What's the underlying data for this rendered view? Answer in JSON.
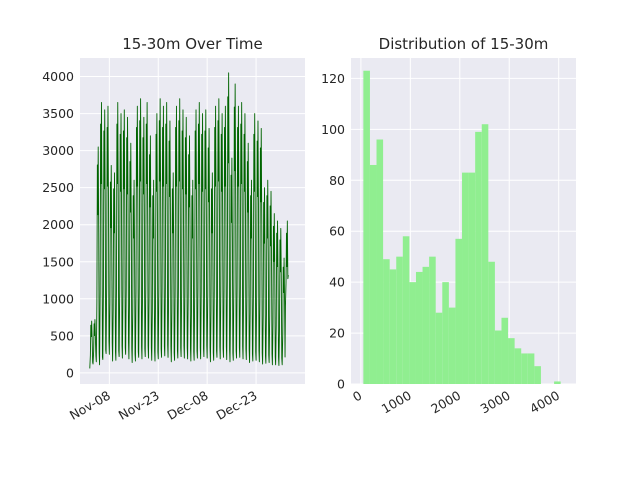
{
  "chart_data": [
    {
      "type": "line",
      "title": "15-30m Over Time",
      "xlabel": "",
      "ylabel": "",
      "x_tick_labels": [
        "Nov-08",
        "Nov-23",
        "Dec-08",
        "Dec-23"
      ],
      "x_tick_dates": [
        "2023-11-08",
        "2023-11-23",
        "2023-12-08",
        "2023-12-23"
      ],
      "xlim": [
        "2023-10-30",
        "2024-01-07"
      ],
      "y_ticks": [
        0,
        500,
        1000,
        1500,
        2000,
        2500,
        3000,
        3500,
        4000
      ],
      "ylim": [
        -150,
        4250
      ],
      "grid": true,
      "series": [
        {
          "color": "#006400",
          "daily_peaks": [
            700,
            720,
            3050,
            3650,
            3550,
            3600,
            2800,
            2700,
            3650,
            3500,
            3550,
            3450,
            3100,
            2600,
            3600,
            3700,
            3450,
            3650,
            3200,
            2600,
            3500,
            3700,
            3600,
            3650,
            3400,
            2700,
            3600,
            3700,
            3550,
            3450,
            3200,
            2600,
            3550,
            3650,
            3500,
            3550,
            3300,
            2700,
            3600,
            3700,
            3500,
            3600,
            4050,
            2900,
            3900,
            3600,
            3650,
            3500,
            3100,
            2600,
            3500,
            3400,
            3300,
            2500,
            2600,
            2450,
            2150,
            2050,
            1950,
            1550,
            2050
          ],
          "daily_troughs": [
            60,
            120,
            150,
            110,
            180,
            260,
            250,
            160,
            170,
            220,
            200,
            250,
            190,
            140,
            160,
            210,
            190,
            220,
            200,
            170,
            160,
            190,
            210,
            230,
            210,
            150,
            170,
            200,
            220,
            200,
            190,
            160,
            170,
            200,
            190,
            220,
            200,
            150,
            170,
            210,
            190,
            210,
            180,
            150,
            170,
            200,
            210,
            190,
            180,
            140,
            160,
            170,
            150,
            120,
            130,
            140,
            110,
            110,
            100,
            110,
            900
          ]
        }
      ]
    },
    {
      "type": "bar",
      "title": "Distribution of 15-30m",
      "xlabel": "",
      "ylabel": "",
      "x_ticks": [
        0,
        1000,
        2000,
        3000,
        4000
      ],
      "xlim": [
        -200,
        4350
      ],
      "y_ticks": [
        0,
        20,
        40,
        60,
        80,
        100,
        120
      ],
      "ylim": [
        0,
        128
      ],
      "grid": true,
      "color": "#90EE90",
      "bin_start": 50,
      "bin_width": 133,
      "values": [
        123,
        86,
        96,
        49,
        45,
        50,
        58,
        40,
        44,
        46,
        50,
        28,
        40,
        30,
        57,
        83,
        83,
        99,
        102,
        48,
        21,
        26,
        18,
        14,
        12,
        12,
        7,
        0,
        0,
        1
      ]
    }
  ]
}
